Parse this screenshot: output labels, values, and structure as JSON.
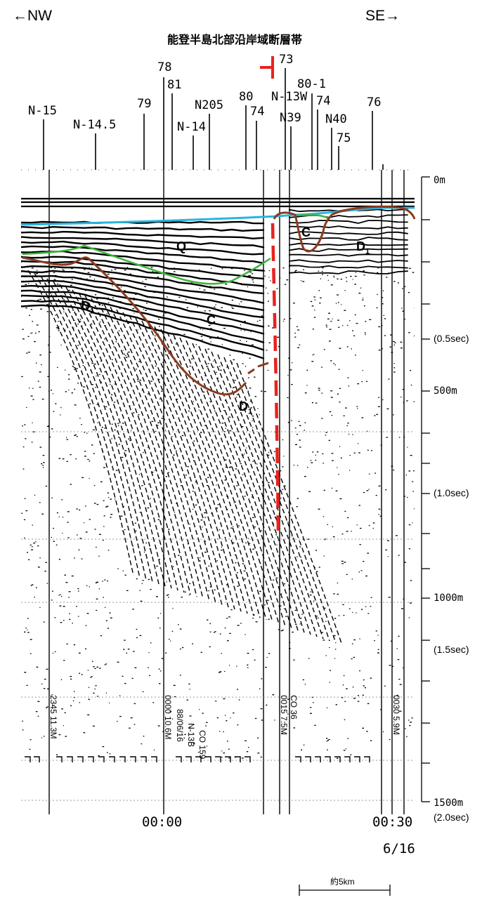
{
  "header": {
    "left_direction": "←NW",
    "right_direction": "SE→",
    "title": "能登半島北部沿岸域断層帯"
  },
  "survey_points": [
    "N-15",
    "N-14.5",
    "79",
    "78",
    "81",
    "N-14",
    "N205",
    "80",
    "74",
    "73",
    "N-13W",
    "N39",
    "80-1",
    "74",
    "N40",
    "75",
    "76"
  ],
  "depth_scale": {
    "labels": [
      "0m",
      "(0.5sec)",
      "500m",
      "(1.0sec)",
      "1000m",
      "(1.5sec)",
      "1500m",
      "(2.0sec)"
    ]
  },
  "time_labels": {
    "left": "00:00",
    "right": "00:30",
    "date": "6/16"
  },
  "scale_bar": {
    "label": "約5km"
  },
  "units": {
    "Q": "Q",
    "C_upper": "C",
    "C_lower": "C",
    "D1_left": "D",
    "D1_mid": "D",
    "D1_right": "D",
    "sub": "1"
  },
  "colors": {
    "seafloor": "#2ab4e0",
    "q_base": "#3cb43c",
    "c_base": "#8a3a1e",
    "fault": "#e8231e"
  }
}
